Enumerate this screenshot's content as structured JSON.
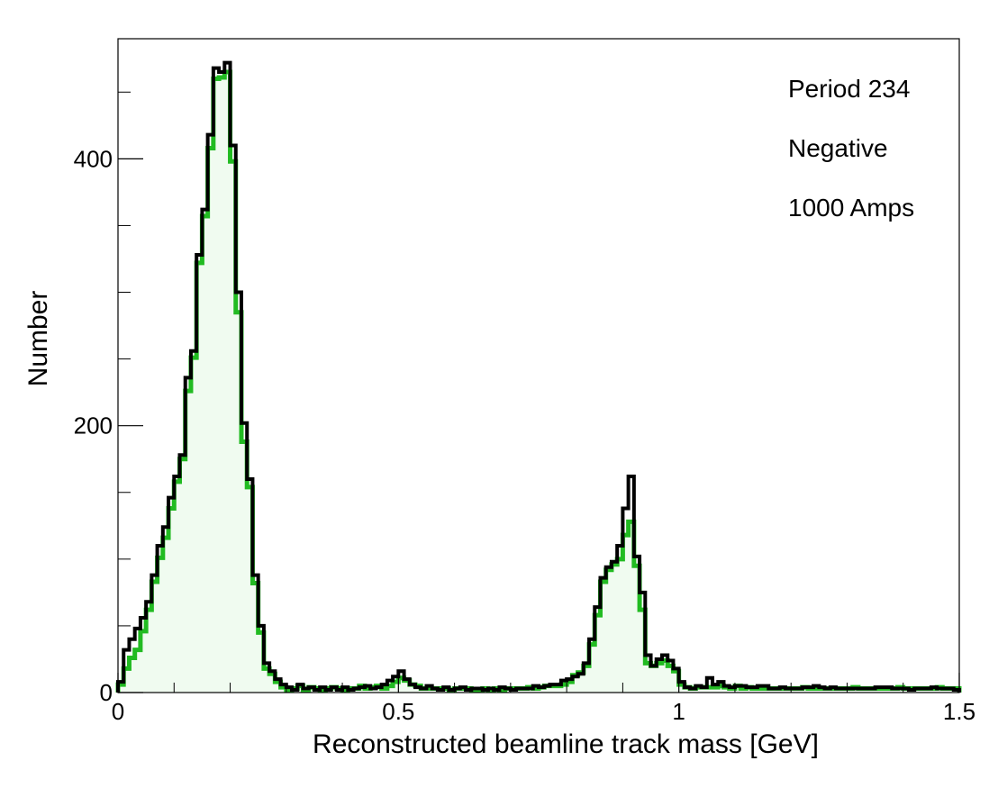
{
  "chart_data": {
    "type": "histogram",
    "xlabel": "Reconstructed beamline track mass [GeV]",
    "ylabel": "Number",
    "xlim": [
      0,
      1.5
    ],
    "ylim": [
      0,
      490
    ],
    "grid": false,
    "legend": "none",
    "x_ticks": [
      {
        "value": 0,
        "label": "0"
      },
      {
        "value": 0.5,
        "label": "0.5"
      },
      {
        "value": 1,
        "label": "1"
      },
      {
        "value": 1.5,
        "label": "1.5"
      }
    ],
    "y_ticks": [
      {
        "value": 0,
        "label": "0"
      },
      {
        "value": 200,
        "label": "200"
      },
      {
        "value": 400,
        "label": "400"
      }
    ],
    "annotations": [
      "Period 234",
      "Negative",
      "1000 Amps"
    ],
    "bin_width": 0.01,
    "bin_start": 0,
    "colors": {
      "black_series": "#000000",
      "green_series": "#22bb22",
      "green_fill": "#f0fbf0"
    },
    "series": [
      {
        "values": [
          6,
          18,
          26,
          32,
          46,
          62,
          83,
          101,
          116,
          138,
          158,
          175,
          226,
          251,
          322,
          357,
          408,
          460,
          461,
          465,
          398,
          285,
          188,
          154,
          82,
          45,
          18,
          14,
          8,
          4,
          2,
          3,
          5,
          2,
          4,
          3,
          2,
          3,
          4,
          3,
          2,
          3,
          3,
          5,
          3,
          4,
          5,
          3,
          5,
          8,
          11,
          9,
          6,
          5,
          3,
          3,
          3,
          3,
          3,
          2,
          3,
          3,
          3,
          2,
          2,
          3,
          2,
          3,
          2,
          3,
          3,
          3,
          3,
          4,
          3,
          4,
          5,
          5,
          5,
          6,
          8,
          13,
          15,
          20,
          36,
          58,
          83,
          92,
          96,
          100,
          118,
          128,
          95,
          62,
          22,
          20,
          22,
          24,
          20,
          16,
          6,
          4,
          3,
          4,
          4,
          4,
          4,
          5,
          4,
          3,
          5,
          3,
          4,
          3,
          3,
          3,
          3,
          3,
          3,
          3,
          3,
          3,
          4,
          3,
          3,
          3,
          3,
          3,
          3,
          3,
          3,
          4,
          3,
          3,
          3,
          3,
          3,
          3,
          3,
          4,
          3,
          3,
          3,
          3,
          3,
          3,
          4,
          3,
          3,
          3
        ]
      },
      {
        "values": [
          8,
          32,
          40,
          48,
          56,
          68,
          88,
          110,
          124,
          146,
          162,
          178,
          236,
          256,
          328,
          362,
          418,
          468,
          465,
          472,
          410,
          300,
          202,
          160,
          88,
          50,
          22,
          16,
          10,
          6,
          4,
          2,
          6,
          3,
          4,
          2,
          4,
          2,
          4,
          2,
          4,
          2,
          3,
          4,
          5,
          3,
          4,
          6,
          9,
          12,
          16,
          10,
          6,
          4,
          3,
          5,
          3,
          2,
          4,
          2,
          3,
          4,
          2,
          3,
          3,
          2,
          3,
          2,
          4,
          3,
          2,
          3,
          3,
          3,
          5,
          4,
          5,
          6,
          6,
          9,
          10,
          12,
          14,
          22,
          40,
          64,
          86,
          94,
          98,
          110,
          138,
          162,
          102,
          75,
          28,
          20,
          25,
          28,
          24,
          18,
          8,
          4,
          3,
          5,
          4,
          11,
          6,
          8,
          5,
          4,
          5,
          5,
          4,
          4,
          5,
          5,
          3,
          3,
          4,
          3,
          3,
          3,
          4,
          4,
          5,
          4,
          3,
          4,
          3,
          3,
          3,
          3,
          3,
          3,
          3,
          4,
          4,
          4,
          3,
          3,
          3,
          2,
          3,
          3,
          3,
          4,
          3,
          3,
          3,
          2
        ]
      }
    ]
  }
}
